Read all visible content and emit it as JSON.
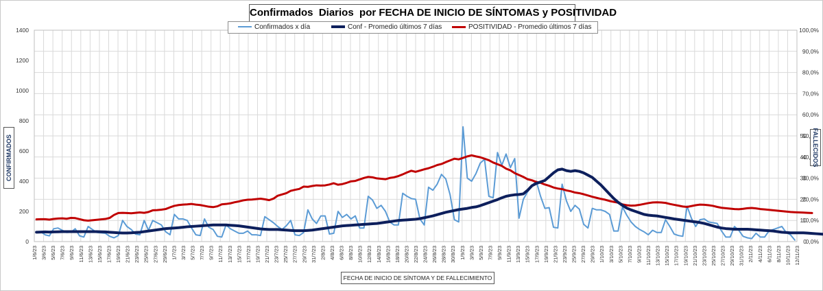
{
  "chart_data": {
    "type": "line",
    "title": "Confirmados  Diarios  por FECHA DE INICIO DE SÍNTOMAS y POSITIVIDAD",
    "xlabel": "FECHA DE INICIO DE SÍNTOMA  Y DE FALLECIMIENTO",
    "ylabel_left": "CONFIRMADOS",
    "ylabel_right": "FALLECIDOS",
    "ylim_left": [
      0,
      1400
    ],
    "yticks_left": [
      "0",
      "200",
      "400",
      "600",
      "800",
      "1000",
      "1200",
      "1400"
    ],
    "ylim_right_pct": [
      0,
      100
    ],
    "yticks_right_pct": [
      "0,0%",
      "10,0%",
      "20,0%",
      "30,0%",
      "40,0%",
      "50,0%",
      "60,0%",
      "70,0%",
      "80,0%",
      "90,0%",
      "100,0%"
    ],
    "yticks_right_inner": [
      "0",
      "10",
      "20",
      "30",
      "40",
      "50"
    ],
    "grid": true,
    "legend_position": "top",
    "x_tick_labels": [
      "1/6/23",
      "3/6/23",
      "5/6/23",
      "7/6/23",
      "9/6/23",
      "11/6/23",
      "13/6/23",
      "15/6/23",
      "17/6/23",
      "19/6/23",
      "21/6/23",
      "23/6/23",
      "25/6/23",
      "27/6/23",
      "29/6/23",
      "1/7/23",
      "3/7/23",
      "5/7/23",
      "7/7/23",
      "9/7/23",
      "11/7/23",
      "13/7/23",
      "15/7/23",
      "17/7/23",
      "19/7/23",
      "21/7/23",
      "23/7/23",
      "25/7/23",
      "27/7/23",
      "29/7/23",
      "31/7/23",
      "2/8/23",
      "4/8/23",
      "6/8/23",
      "8/8/23",
      "10/8/23",
      "12/8/23",
      "14/8/23",
      "16/8/23",
      "18/8/23",
      "20/8/23",
      "22/8/23",
      "24/8/23",
      "26/8/23",
      "28/8/23",
      "30/8/23",
      "1/9/23",
      "3/9/23",
      "5/9/23",
      "7/9/23",
      "9/9/23",
      "11/9/23",
      "13/9/23",
      "15/9/23",
      "17/9/23",
      "19/9/23",
      "21/9/23",
      "23/9/23",
      "25/9/23",
      "27/9/23",
      "29/9/23",
      "1/10/23",
      "3/10/23",
      "5/10/23",
      "7/10/23",
      "9/10/23",
      "11/10/23",
      "13/10/23",
      "15/10/23",
      "17/10/23",
      "19/10/23",
      "21/10/23",
      "23/10/23",
      "25/10/23",
      "27/10/23",
      "29/10/23",
      "31/10/23",
      "2/11/23",
      "4/11/23",
      "6/11/23",
      "8/11/23",
      "10/11/23",
      "12/11/23"
    ],
    "series": [
      {
        "name": "Confirmados x día",
        "color": "#5b9bd5",
        "axis": "left",
        "values": [
          62,
          65,
          45,
          38,
          85,
          90,
          75,
          60,
          62,
          85,
          38,
          30,
          100,
          80,
          60,
          58,
          55,
          35,
          25,
          40,
          140,
          100,
          80,
          50,
          45,
          140,
          75,
          140,
          125,
          110,
          65,
          45,
          180,
          150,
          150,
          140,
          90,
          45,
          40,
          150,
          95,
          80,
          35,
          30,
          110,
          85,
          70,
          55,
          55,
          70,
          45,
          45,
          40,
          165,
          145,
          125,
          100,
          80,
          105,
          140,
          45,
          40,
          60,
          210,
          150,
          120,
          170,
          170,
          50,
          55,
          200,
          160,
          180,
          150,
          170,
          90,
          90,
          300,
          275,
          220,
          240,
          200,
          130,
          110,
          110,
          320,
          300,
          285,
          280,
          150,
          110,
          360,
          340,
          380,
          445,
          415,
          310,
          145,
          130,
          760,
          420,
          400,
          450,
          520,
          545,
          300,
          290,
          590,
          505,
          580,
          490,
          550,
          155,
          280,
          330,
          370,
          400,
          300,
          220,
          225,
          95,
          90,
          380,
          270,
          200,
          240,
          215,
          115,
          90,
          220,
          210,
          210,
          200,
          180,
          70,
          70,
          230,
          175,
          130,
          100,
          80,
          65,
          45,
          75,
          60,
          60,
          145,
          100,
          50,
          40,
          35,
          235,
          155,
          100,
          145,
          150,
          130,
          125,
          120,
          70,
          30,
          30,
          100,
          75,
          35,
          25,
          20,
          55,
          30,
          30,
          70,
          80,
          90,
          100,
          60,
          45,
          10
        ]
      },
      {
        "name": "Conf - Promedio últimos 7 días",
        "color": "#0d1f5c",
        "axis": "left",
        "values": [
          62,
          63,
          64,
          63,
          64,
          65,
          66,
          66,
          66,
          66,
          66,
          66,
          66,
          66,
          66,
          65,
          64,
          62,
          60,
          58,
          57,
          57,
          58,
          60,
          62,
          66,
          70,
          74,
          78,
          82,
          86,
          88,
          90,
          92,
          95,
          98,
          100,
          102,
          104,
          106,
          108,
          110,
          110,
          110,
          110,
          108,
          106,
          104,
          100,
          96,
          92,
          88,
          84,
          82,
          80,
          80,
          80,
          78,
          76,
          74,
          72,
          72,
          72,
          74,
          76,
          80,
          84,
          88,
          92,
          96,
          100,
          104,
          106,
          108,
          110,
          112,
          114,
          116,
          118,
          120,
          124,
          128,
          132,
          136,
          140,
          142,
          144,
          146,
          148,
          152,
          158,
          164,
          170,
          178,
          186,
          194,
          200,
          206,
          212,
          216,
          220,
          226,
          230,
          238,
          248,
          258,
          268,
          278,
          290,
          300,
          306,
          310,
          312,
          316,
          340,
          370,
          385,
          395,
          405,
          430,
          455,
          475,
          480,
          470,
          465,
          470,
          465,
          455,
          440,
          425,
          400,
          375,
          345,
          315,
          285,
          260,
          240,
          222,
          210,
          200,
          190,
          180,
          175,
          172,
          170,
          165,
          160,
          155,
          150,
          146,
          142,
          138,
          134,
          130,
          126,
          120,
          112,
          104,
          96,
          90,
          86,
          84,
          82,
          82,
          82,
          82,
          80,
          78,
          76,
          74,
          72,
          70,
          66,
          62,
          60,
          58,
          58,
          58,
          58,
          56,
          54,
          52,
          50,
          48
        ]
      },
      {
        "name": "POSITIVIDAD - Promedio últimos 7 días",
        "color": "#c00000",
        "axis": "right_pct",
        "values": [
          10.5,
          10.6,
          10.6,
          10.4,
          10.7,
          10.9,
          11.0,
          10.8,
          11.2,
          11.1,
          10.6,
          10.1,
          9.9,
          10.1,
          10.3,
          10.5,
          10.7,
          11.2,
          12.6,
          13.5,
          13.6,
          13.5,
          13.4,
          13.6,
          13.8,
          13.6,
          14.0,
          14.8,
          14.9,
          15.1,
          15.4,
          16.2,
          16.9,
          17.3,
          17.5,
          17.6,
          17.8,
          17.5,
          17.3,
          16.9,
          16.5,
          16.3,
          16.7,
          17.6,
          17.8,
          18.1,
          18.6,
          19.0,
          19.5,
          19.8,
          19.9,
          20.1,
          20.3,
          20.0,
          19.6,
          20.3,
          21.7,
          22.3,
          22.9,
          24.0,
          24.5,
          24.9,
          26.0,
          25.9,
          26.3,
          26.6,
          26.5,
          26.6,
          27.0,
          27.6,
          26.9,
          27.2,
          27.8,
          28.5,
          28.7,
          29.4,
          30.1,
          30.6,
          30.4,
          29.9,
          29.7,
          29.5,
          30.1,
          30.4,
          31.0,
          31.8,
          32.7,
          33.5,
          33.0,
          33.6,
          34.2,
          34.7,
          35.4,
          36.2,
          36.7,
          37.6,
          38.4,
          39.2,
          38.9,
          39.6,
          40.3,
          40.8,
          40.3,
          39.9,
          39.2,
          38.5,
          37.4,
          36.6,
          35.8,
          34.5,
          33.7,
          32.4,
          31.5,
          30.6,
          29.5,
          29.0,
          28.2,
          27.8,
          27.0,
          26.4,
          25.6,
          25.1,
          24.8,
          24.2,
          23.8,
          23.2,
          22.9,
          22.4,
          21.8,
          21.2,
          20.7,
          20.2,
          19.8,
          19.2,
          18.8,
          18.4,
          17.6,
          17.2,
          17.0,
          17.1,
          17.4,
          17.8,
          18.2,
          18.5,
          18.6,
          18.5,
          18.3,
          17.8,
          17.4,
          17.0,
          16.6,
          16.4,
          16.8,
          17.2,
          17.5,
          17.4,
          17.2,
          16.9,
          16.4,
          16.0,
          15.8,
          15.6,
          15.4,
          15.3,
          15.5,
          15.8,
          15.9,
          15.7,
          15.4,
          15.2,
          15.0,
          14.8,
          14.6,
          14.4,
          14.2,
          14.0,
          13.9,
          13.8,
          13.7,
          13.6,
          13.5
        ]
      }
    ]
  }
}
